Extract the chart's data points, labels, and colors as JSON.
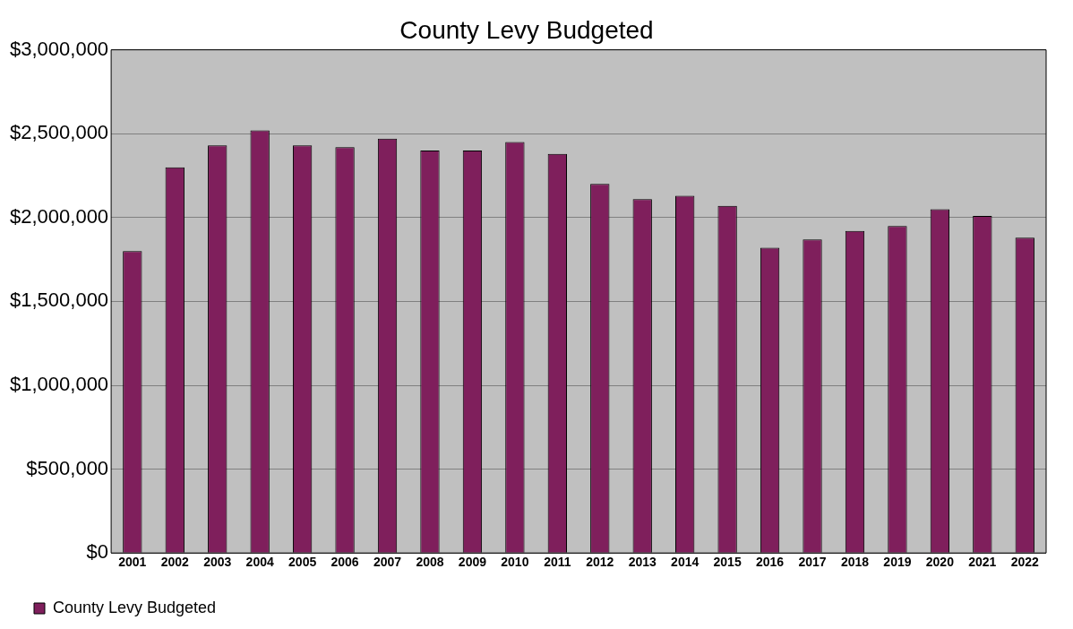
{
  "chart_data": {
    "type": "bar",
    "title": "County Levy Budgeted",
    "categories": [
      "2001",
      "2002",
      "2003",
      "2004",
      "2005",
      "2006",
      "2007",
      "2008",
      "2009",
      "2010",
      "2011",
      "2012",
      "2013",
      "2014",
      "2015",
      "2016",
      "2017",
      "2018",
      "2019",
      "2020",
      "2021",
      "2022"
    ],
    "series": [
      {
        "name": "County Levy Budgeted",
        "color": "#7f1f5c",
        "values": [
          1800000,
          2300000,
          2430000,
          2520000,
          2430000,
          2420000,
          2470000,
          2400000,
          2400000,
          2450000,
          2380000,
          2200000,
          2110000,
          2130000,
          2070000,
          1820000,
          1870000,
          1920000,
          1950000,
          2050000,
          2010000,
          1880000
        ]
      }
    ],
    "ylim": [
      0,
      3000000
    ],
    "yticks": [
      {
        "value": 0,
        "label": "$0"
      },
      {
        "value": 500000,
        "label": "$500,000"
      },
      {
        "value": 1000000,
        "label": "$1,000,000"
      },
      {
        "value": 1500000,
        "label": "$1,500,000"
      },
      {
        "value": 2000000,
        "label": "$2,000,000"
      },
      {
        "value": 2500000,
        "label": "$2,500,000"
      },
      {
        "value": 3000000,
        "label": "$3,000,000"
      }
    ],
    "grid": "y",
    "legend": "bottom"
  }
}
